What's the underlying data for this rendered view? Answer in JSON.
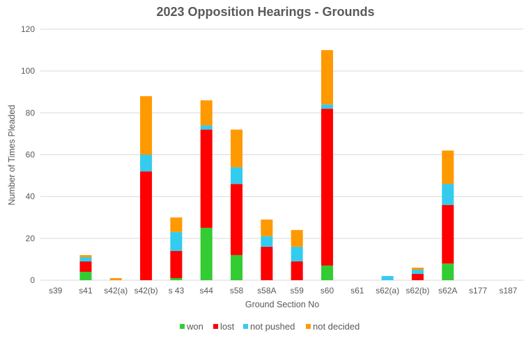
{
  "chart_data": {
    "type": "bar",
    "stacked": true,
    "title": "2023 Opposition Hearings - Grounds",
    "xlabel": "Ground Section No",
    "ylabel": "Number of Times Pleaded",
    "ylim": [
      0,
      120
    ],
    "yticks": [
      0,
      20,
      40,
      60,
      80,
      100,
      120
    ],
    "grid": true,
    "legend": "bottom",
    "categories": [
      "s39",
      "s41",
      "s42(a)",
      "s42(b)",
      "s 43",
      "s44",
      "s58",
      "s58A",
      "s59",
      "s60",
      "s61",
      "s62(a)",
      "s62(b)",
      "s62A",
      "s177",
      "s187"
    ],
    "series": [
      {
        "name": "won",
        "color": "#33cc33",
        "values": [
          0,
          4,
          0,
          0,
          1,
          25,
          12,
          0,
          0,
          7,
          0,
          0,
          0,
          8,
          0,
          0
        ]
      },
      {
        "name": "lost",
        "color": "#ff0000",
        "values": [
          0,
          5,
          0,
          52,
          13,
          47,
          34,
          16,
          9,
          75,
          0,
          0,
          3,
          28,
          0,
          0
        ]
      },
      {
        "name": "not pushed",
        "color": "#33ccee",
        "values": [
          0,
          2,
          0,
          8,
          9,
          2,
          8,
          5,
          7,
          2,
          0,
          2,
          2,
          10,
          0,
          0
        ]
      },
      {
        "name": "not decided",
        "color": "#ff9900",
        "values": [
          0,
          1,
          1,
          28,
          7,
          12,
          18,
          8,
          8,
          26,
          0,
          0,
          1,
          16,
          0,
          0
        ]
      }
    ]
  }
}
